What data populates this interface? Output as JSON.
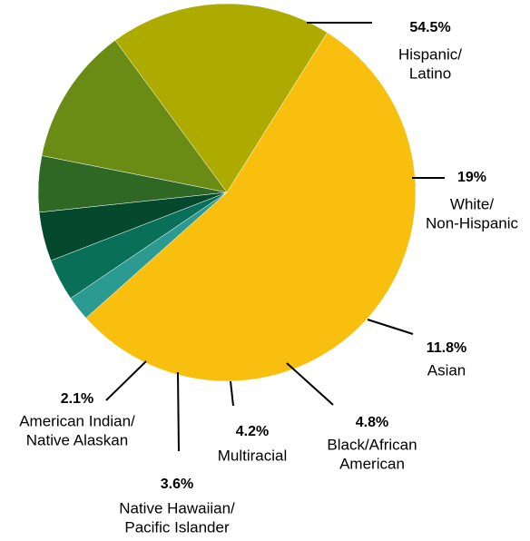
{
  "chart_data": {
    "type": "pie",
    "title": "",
    "slices": [
      {
        "label": [
          "Hispanic/",
          "Latino"
        ],
        "value": 54.5,
        "value_label": "54.5%",
        "color": "#F9BF0F"
      },
      {
        "label": [
          "White/",
          "Non-Hispanic"
        ],
        "value": 19,
        "value_label": "19%",
        "color": "#AEAB00"
      },
      {
        "label": [
          "Asian"
        ],
        "value": 11.8,
        "value_label": "11.8%",
        "color": "#6A8C14"
      },
      {
        "label": [
          "Black/African",
          "American"
        ],
        "value": 4.8,
        "value_label": "4.8%",
        "color": "#2E6824"
      },
      {
        "label": [
          "Multiracial"
        ],
        "value": 4.2,
        "value_label": "4.2%",
        "color": "#04482D"
      },
      {
        "label": [
          "Native Hawaiian/",
          "Pacific Islander"
        ],
        "value": 3.6,
        "value_label": "3.6%",
        "color": "#0A6F58"
      },
      {
        "label": [
          "American Indian/",
          "Native Alaskan"
        ],
        "value": 2.1,
        "value_label": "2.1%",
        "color": "#2B9A90"
      }
    ]
  }
}
